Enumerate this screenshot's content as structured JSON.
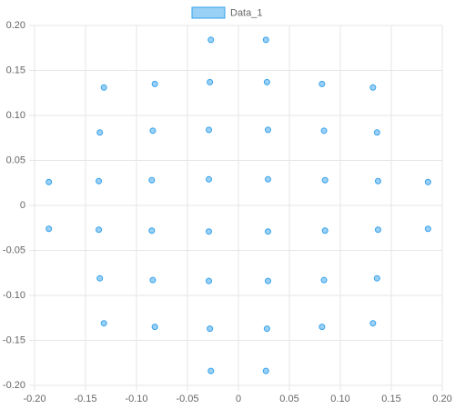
{
  "chart_data": {
    "type": "scatter",
    "series": [
      {
        "name": "Data_1",
        "color": "#36a2eb",
        "x": [
          -0.027,
          0.027,
          -0.132,
          -0.082,
          -0.028,
          0.028,
          0.082,
          0.132,
          -0.136,
          -0.084,
          -0.029,
          0.029,
          0.084,
          0.136,
          -0.186,
          -0.137,
          -0.085,
          -0.029,
          0.029,
          0.085,
          0.137,
          0.186,
          -0.186,
          -0.137,
          -0.085,
          -0.029,
          0.029,
          0.085,
          0.137,
          0.186,
          -0.136,
          -0.084,
          -0.029,
          0.029,
          0.084,
          0.136,
          -0.132,
          -0.082,
          -0.028,
          0.028,
          0.082,
          0.132,
          -0.027,
          0.027
        ],
        "y": [
          0.184,
          0.184,
          0.131,
          0.135,
          0.137,
          0.137,
          0.135,
          0.131,
          0.081,
          0.083,
          0.084,
          0.084,
          0.083,
          0.081,
          0.026,
          0.027,
          0.028,
          0.029,
          0.029,
          0.028,
          0.027,
          0.026,
          -0.026,
          -0.027,
          -0.028,
          -0.029,
          -0.029,
          -0.028,
          -0.027,
          -0.026,
          -0.081,
          -0.083,
          -0.084,
          -0.084,
          -0.083,
          -0.081,
          -0.131,
          -0.135,
          -0.137,
          -0.137,
          -0.135,
          -0.131,
          -0.184,
          -0.184
        ]
      }
    ],
    "xlim": [
      -0.2,
      0.2
    ],
    "ylim": [
      -0.2,
      0.2
    ],
    "xticks": [
      {
        "value": -0.2,
        "label": "-0.20"
      },
      -0.15,
      {
        "value": -0.1,
        "label": "-0.10"
      },
      -0.05,
      0,
      0.05,
      {
        "value": 0.1,
        "label": "0.10"
      },
      0.15,
      {
        "value": 0.2,
        "label": "0.20"
      }
    ],
    "yticks": [
      {
        "value": -0.2,
        "label": "-0.20"
      },
      -0.15,
      {
        "value": -0.1,
        "label": "-0.10"
      },
      -0.05,
      0,
      0.05,
      {
        "value": 0.1,
        "label": "0.10"
      },
      0.15,
      {
        "value": 0.2,
        "label": "0.20"
      }
    ],
    "grid": true,
    "legend": "top"
  }
}
